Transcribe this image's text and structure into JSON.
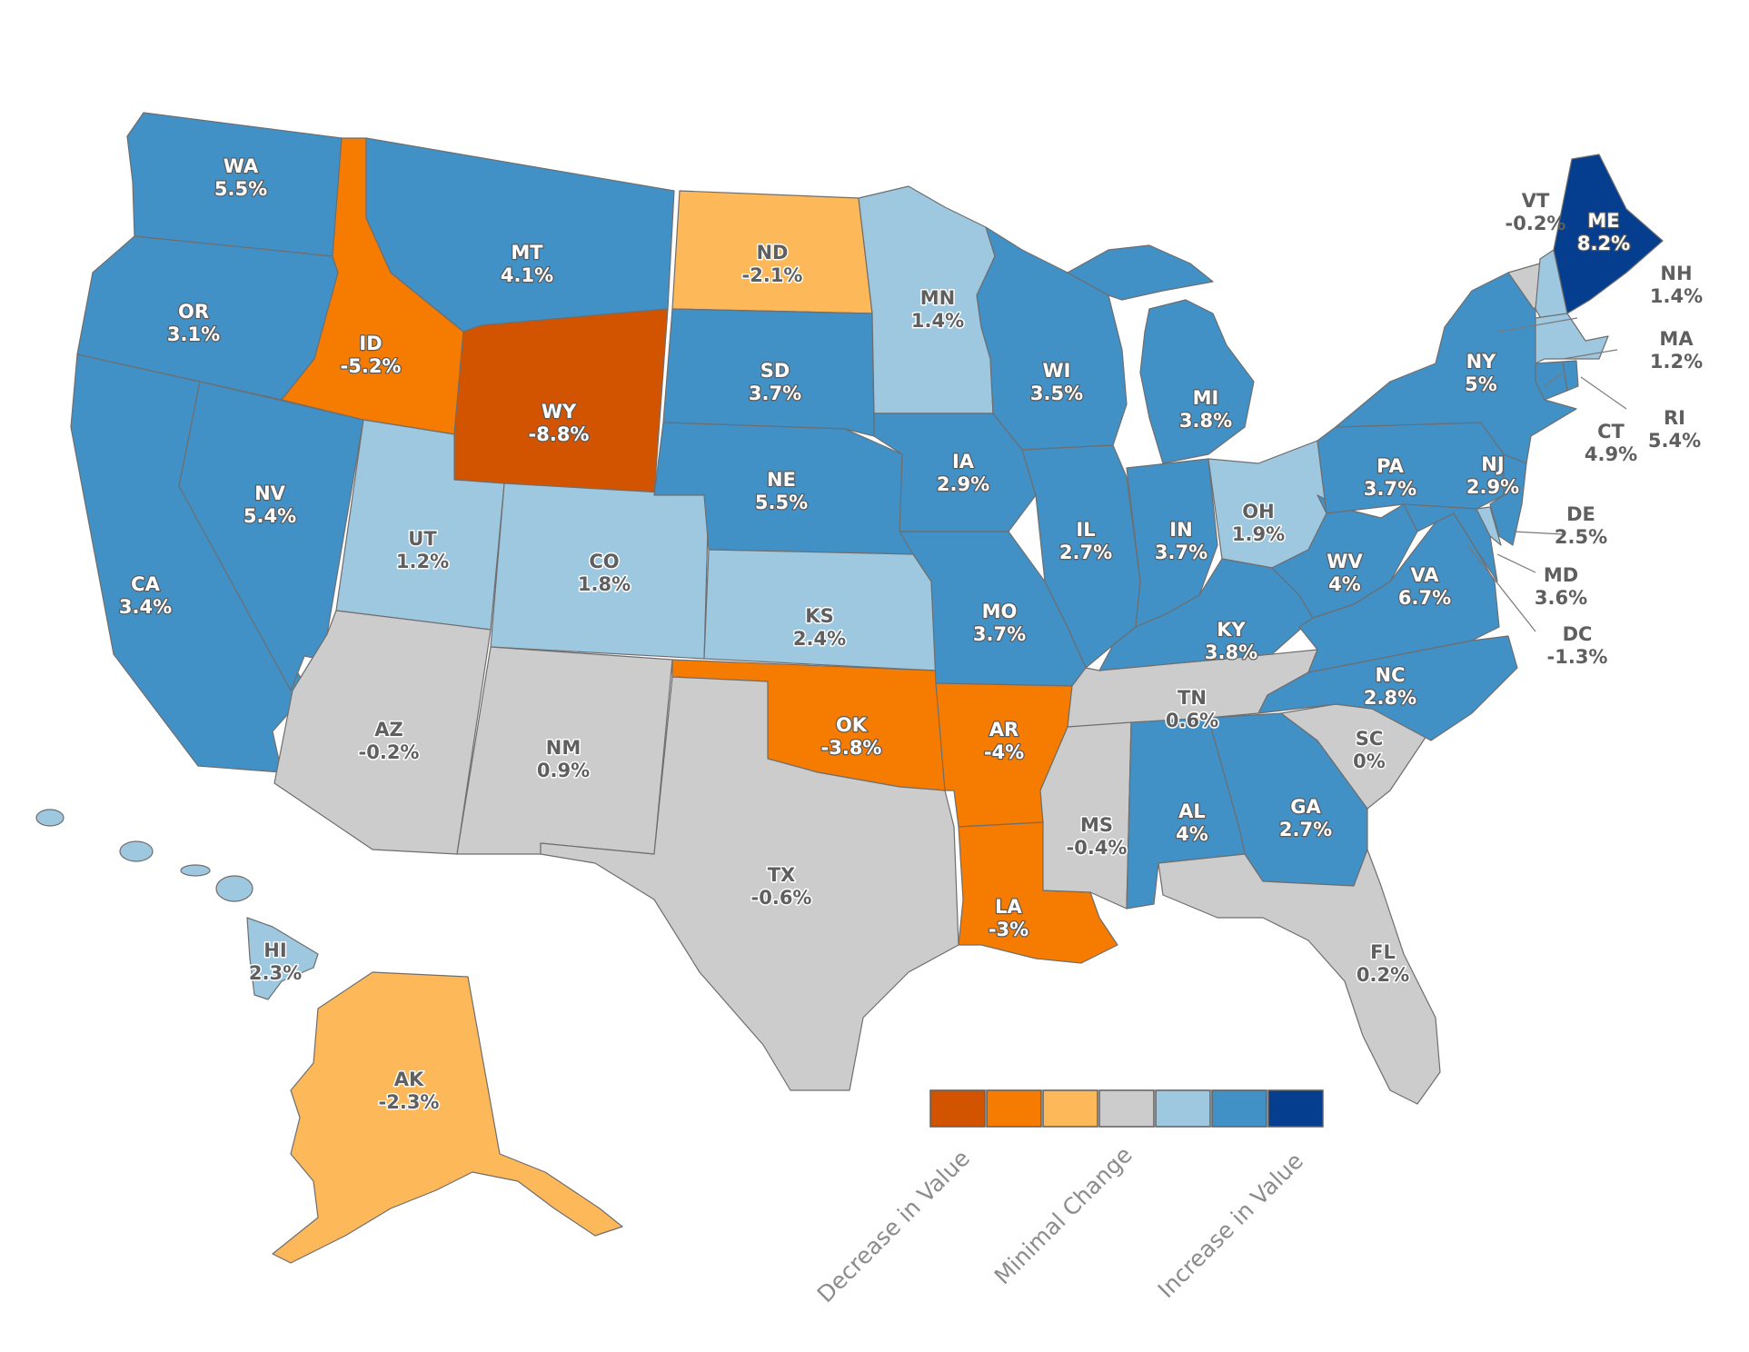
{
  "colors": {
    "dec_strong": "#d35400",
    "dec_mid": "#f57c00",
    "dec_light": "#fdb85a",
    "neutral": "#cccccc",
    "inc_light": "#9ec7e0",
    "inc_mid": "#4190c6",
    "inc_strong": "#053e8f"
  },
  "legend": {
    "swatches": [
      "dec_strong",
      "dec_mid",
      "dec_light",
      "neutral",
      "inc_light",
      "inc_mid",
      "inc_strong"
    ],
    "labels": [
      "Decrease in Value",
      "Minimal Change",
      "Increase in Value"
    ]
  },
  "states": {
    "WA": {
      "value": "5.5%",
      "category": "inc_mid"
    },
    "OR": {
      "value": "3.1%",
      "category": "inc_mid"
    },
    "CA": {
      "value": "3.4%",
      "category": "inc_mid"
    },
    "NV": {
      "value": "5.4%",
      "category": "inc_mid"
    },
    "ID": {
      "value": "-5.2%",
      "category": "dec_mid"
    },
    "MT": {
      "value": "4.1%",
      "category": "inc_mid"
    },
    "WY": {
      "value": "-8.8%",
      "category": "dec_strong"
    },
    "UT": {
      "value": "1.2%",
      "category": "inc_light"
    },
    "CO": {
      "value": "1.8%",
      "category": "inc_light"
    },
    "AZ": {
      "value": "-0.2%",
      "category": "neutral"
    },
    "NM": {
      "value": "0.9%",
      "category": "neutral"
    },
    "ND": {
      "value": "-2.1%",
      "category": "dec_light"
    },
    "SD": {
      "value": "3.7%",
      "category": "inc_mid"
    },
    "NE": {
      "value": "5.5%",
      "category": "inc_mid"
    },
    "KS": {
      "value": "2.4%",
      "category": "inc_light"
    },
    "OK": {
      "value": "-3.8%",
      "category": "dec_mid"
    },
    "TX": {
      "value": "-0.6%",
      "category": "neutral"
    },
    "MN": {
      "value": "1.4%",
      "category": "inc_light"
    },
    "IA": {
      "value": "2.9%",
      "category": "inc_mid"
    },
    "MO": {
      "value": "3.7%",
      "category": "inc_mid"
    },
    "AR": {
      "value": "-4%",
      "category": "dec_mid"
    },
    "LA": {
      "value": "-3%",
      "category": "dec_mid"
    },
    "WI": {
      "value": "3.5%",
      "category": "inc_mid"
    },
    "IL": {
      "value": "2.7%",
      "category": "inc_mid"
    },
    "MI": {
      "value": "3.8%",
      "category": "inc_mid"
    },
    "IN": {
      "value": "3.7%",
      "category": "inc_mid"
    },
    "OH": {
      "value": "1.9%",
      "category": "inc_light"
    },
    "KY": {
      "value": "3.8%",
      "category": "inc_mid"
    },
    "TN": {
      "value": "0.6%",
      "category": "neutral"
    },
    "MS": {
      "value": "-0.4%",
      "category": "neutral"
    },
    "AL": {
      "value": "4%",
      "category": "inc_mid"
    },
    "GA": {
      "value": "2.7%",
      "category": "inc_mid"
    },
    "FL": {
      "value": "0.2%",
      "category": "neutral"
    },
    "SC": {
      "value": "0%",
      "category": "neutral"
    },
    "NC": {
      "value": "2.8%",
      "category": "inc_mid"
    },
    "VA": {
      "value": "6.7%",
      "category": "inc_mid"
    },
    "WV": {
      "value": "4%",
      "category": "inc_mid"
    },
    "PA": {
      "value": "3.7%",
      "category": "inc_mid"
    },
    "NY": {
      "value": "5%",
      "category": "inc_mid"
    },
    "NJ": {
      "value": "2.9%",
      "category": "inc_mid"
    },
    "DE": {
      "value": "2.5%",
      "category": "inc_light"
    },
    "MD": {
      "value": "3.6%",
      "category": "inc_mid"
    },
    "DC": {
      "value": "-1.3%",
      "category": "neutral"
    },
    "CT": {
      "value": "4.9%",
      "category": "inc_mid"
    },
    "RI": {
      "value": "5.4%",
      "category": "inc_mid"
    },
    "MA": {
      "value": "1.2%",
      "category": "inc_light"
    },
    "NH": {
      "value": "1.4%",
      "category": "inc_light"
    },
    "VT": {
      "value": "-0.2%",
      "category": "neutral"
    },
    "ME": {
      "value": "8.2%",
      "category": "inc_strong"
    },
    "AK": {
      "value": "-2.3%",
      "category": "dec_light"
    },
    "HI": {
      "value": "2.3%",
      "category": "inc_light"
    }
  }
}
